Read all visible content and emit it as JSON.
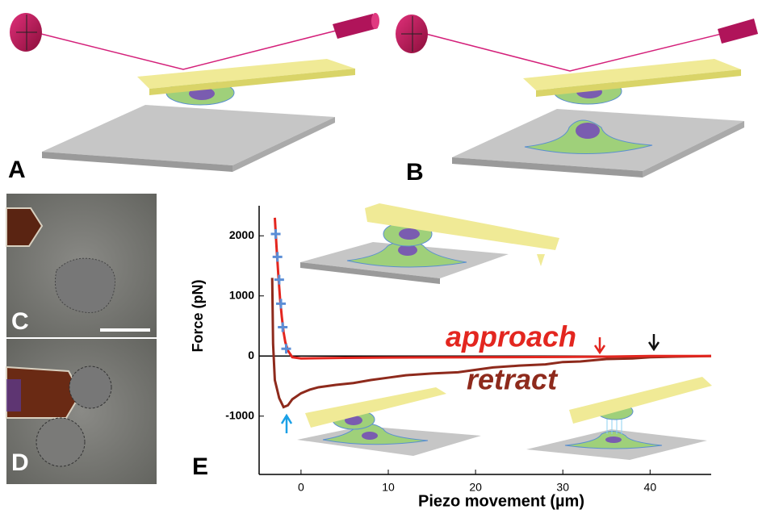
{
  "panel_labels": [
    "A",
    "B",
    "C",
    "D",
    "E"
  ],
  "chart_data": {
    "type": "line",
    "x_label": "Piezo movement (µm)",
    "y_label": "Force (pN)",
    "xlim": [
      -4.8,
      47
    ],
    "ylim": [
      -1970,
      2500
    ],
    "xticks": [
      0,
      10,
      20,
      30,
      40
    ],
    "yticks": [
      -1000,
      0,
      1000,
      2000
    ],
    "zero_line": true,
    "series": [
      {
        "name": "retract",
        "color": "#8e2a1c",
        "mode": "line",
        "x": [
          -3.3,
          -3.2,
          -3,
          -2.5,
          -2,
          -1.5,
          -1,
          0,
          1,
          2,
          4,
          6,
          8,
          10,
          12,
          15,
          18,
          20,
          22,
          25,
          28,
          30,
          32,
          35,
          38,
          40,
          43,
          47
        ],
        "values": [
          1300,
          200,
          -400,
          -700,
          -850,
          -820,
          -720,
          -620,
          -560,
          -520,
          -480,
          -450,
          -400,
          -360,
          -320,
          -290,
          -270,
          -230,
          -190,
          -160,
          -140,
          -100,
          -90,
          -50,
          -40,
          -20,
          -10,
          0
        ]
      },
      {
        "name": "approach",
        "color": "#e3261f",
        "mode": "line",
        "x": [
          -3,
          -2.8,
          -2.6,
          -2.4,
          -2.2,
          -2,
          -1.8,
          -1.5,
          -1,
          0,
          5,
          10,
          20,
          30,
          35,
          40,
          47
        ],
        "values": [
          2300,
          1800,
          1350,
          950,
          650,
          400,
          230,
          90,
          -20,
          -40,
          -30,
          -25,
          -20,
          -15,
          -10,
          0,
          0
        ]
      },
      {
        "color": "#5b8ed6",
        "mode": "plus",
        "x": [
          -2.9,
          -2.7,
          -2.5,
          -2.3,
          -2.1,
          -1.7
        ],
        "values": [
          2030,
          1650,
          1270,
          870,
          480,
          120
        ]
      }
    ]
  }
}
